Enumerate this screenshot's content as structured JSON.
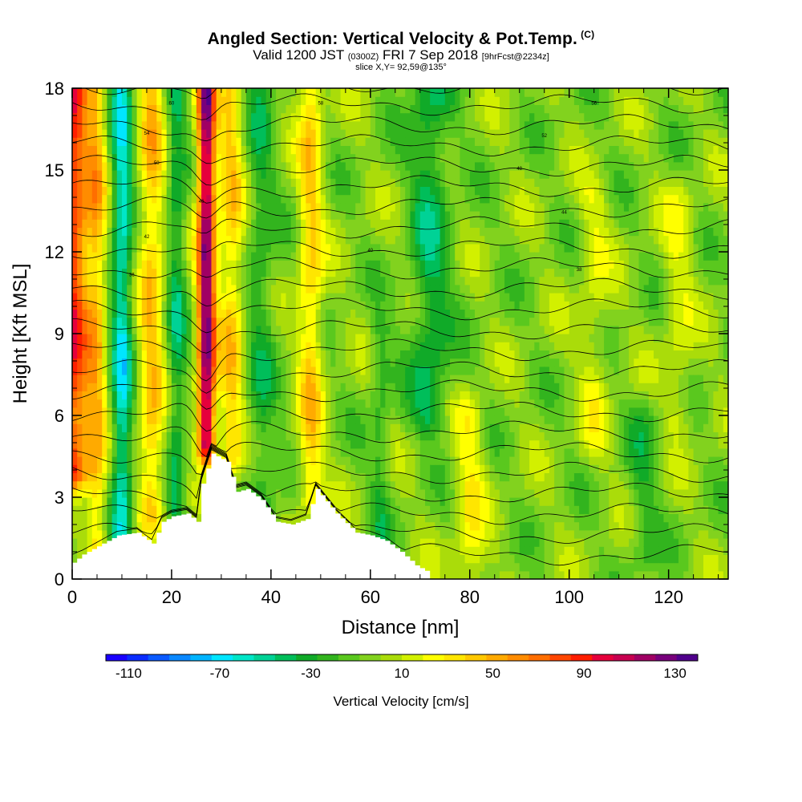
{
  "header": {
    "title": "Angled Section: Vertical Velocity & Pot.Temp.",
    "title_suffix": "(C)",
    "valid_prefix": "Valid 1200 JST",
    "valid_zulu": "(0300Z)",
    "valid_date": "FRI 7 Sep 2018",
    "forecast": "[9hrFcst@2234z]",
    "slice": "slice X,Y= 92,59@135°"
  },
  "chart_data": {
    "type": "heatmap",
    "xlabel": "Distance [nm]",
    "ylabel": "Height [Kft MSL]",
    "xlim": [
      0,
      132
    ],
    "ylim": [
      0,
      18
    ],
    "x_ticks": [
      "0",
      "20",
      "40",
      "60",
      "80",
      "100",
      "120"
    ],
    "y_ticks": [
      "0",
      "3",
      "6",
      "9",
      "12",
      "15",
      "18"
    ],
    "colorbar": {
      "label": "Vertical Velocity [cm/s]",
      "tick_labels": [
        "-110",
        "-70",
        "-30",
        "10",
        "50",
        "90",
        "130"
      ],
      "min": -120,
      "max": 140,
      "step": 10,
      "colors": [
        "#1a00ff",
        "#0a2cff",
        "#0a5aff",
        "#0a88ff",
        "#00b4ff",
        "#00e6ff",
        "#00e6c8",
        "#00d296",
        "#00be5a",
        "#10aa28",
        "#32b41e",
        "#5ac81e",
        "#82d21e",
        "#aadc0a",
        "#d2f000",
        "#ffff00",
        "#ffe600",
        "#ffc800",
        "#ffaa00",
        "#ff8c00",
        "#ff6e00",
        "#ff4600",
        "#ff1e00",
        "#e6003c",
        "#c80050",
        "#a00064",
        "#78007c",
        "#50008c"
      ]
    },
    "background_velocity": 5,
    "velocity_features": [
      {
        "x": 27,
        "y0": 5.0,
        "y1": 18,
        "half_width": 1.8,
        "peak": 135
      },
      {
        "x": 32,
        "y0": 4.5,
        "y1": 18,
        "half_width": 2.5,
        "peak": 45
      },
      {
        "x": 0,
        "y0": 4.0,
        "y1": 18,
        "half_width": 3.5,
        "peak": 95
      },
      {
        "x": 5,
        "y0": 1.0,
        "y1": 18,
        "half_width": 2.0,
        "peak": 45
      },
      {
        "x": 16,
        "y0": 2.5,
        "y1": 18,
        "half_width": 2.5,
        "peak": 50
      },
      {
        "x": 48,
        "y0": 3.0,
        "y1": 18,
        "half_width": 2.5,
        "peak": 45
      },
      {
        "x": 10,
        "y0": 1.0,
        "y1": 18,
        "half_width": 2.0,
        "peak": -60
      },
      {
        "x": 21,
        "y0": 2.0,
        "y1": 18,
        "half_width": 1.8,
        "peak": -35
      },
      {
        "x": 38,
        "y0": 2.5,
        "y1": 18,
        "half_width": 2.8,
        "peak": -25
      },
      {
        "x": 72,
        "y0": 6.0,
        "y1": 18,
        "half_width": 4.0,
        "peak": -35
      },
      {
        "x": 80,
        "y0": 0.3,
        "y1": 6.0,
        "half_width": 3.0,
        "peak": 30
      },
      {
        "x": 105,
        "y0": 5.0,
        "y1": 14.0,
        "half_width": 3.0,
        "peak": 20
      },
      {
        "x": 122,
        "y0": 6.0,
        "y1": 14.0,
        "half_width": 3.0,
        "peak": 20
      },
      {
        "x": 62,
        "y0": 1.0,
        "y1": 9.0,
        "half_width": 2.0,
        "peak": -20
      },
      {
        "x": 115,
        "y0": 1.0,
        "y1": 6.0,
        "half_width": 3.0,
        "peak": -20
      }
    ],
    "terrain": [
      {
        "x": 0,
        "h": 0.6
      },
      {
        "x": 2,
        "h": 0.9
      },
      {
        "x": 5,
        "h": 1.2
      },
      {
        "x": 9,
        "h": 1.6
      },
      {
        "x": 13,
        "h": 1.7
      },
      {
        "x": 16,
        "h": 1.3
      },
      {
        "x": 18,
        "h": 2.1
      },
      {
        "x": 20,
        "h": 2.3
      },
      {
        "x": 23,
        "h": 2.4
      },
      {
        "x": 25,
        "h": 2.1
      },
      {
        "x": 26,
        "h": 3.5
      },
      {
        "x": 28,
        "h": 4.6
      },
      {
        "x": 31,
        "h": 4.3
      },
      {
        "x": 33,
        "h": 3.2
      },
      {
        "x": 35,
        "h": 3.3
      },
      {
        "x": 38,
        "h": 2.9
      },
      {
        "x": 41,
        "h": 2.1
      },
      {
        "x": 44,
        "h": 2.0
      },
      {
        "x": 47,
        "h": 2.2
      },
      {
        "x": 49,
        "h": 3.3
      },
      {
        "x": 53,
        "h": 2.4
      },
      {
        "x": 57,
        "h": 1.7
      },
      {
        "x": 60,
        "h": 1.6
      },
      {
        "x": 63,
        "h": 1.4
      },
      {
        "x": 66,
        "h": 1.0
      },
      {
        "x": 69,
        "h": 0.5
      },
      {
        "x": 71,
        "h": 0.3
      }
    ],
    "isentrope_labels": [
      "60",
      "58",
      "56",
      "54",
      "52",
      "50",
      "48",
      "46",
      "44",
      "42",
      "40",
      "38",
      "36"
    ]
  }
}
